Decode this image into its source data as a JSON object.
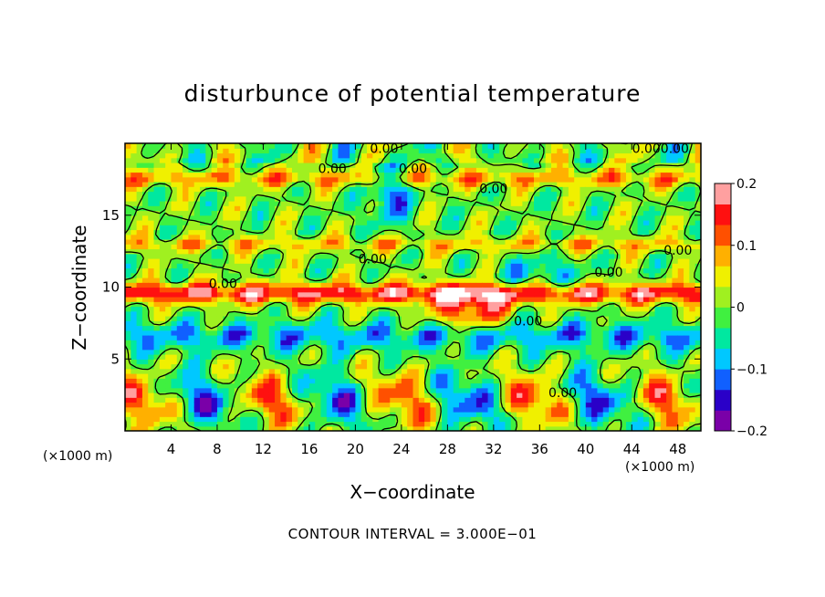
{
  "chart_data": {
    "type": "heatmap",
    "title": "disturbunce of potential temperature",
    "xlabel": "X−coordinate",
    "ylabel": "Z−coordinate",
    "x_unit_label": "(×1000 m)",
    "z_unit_label": "(×1000 m)",
    "xlim": [
      0,
      50
    ],
    "ylim": [
      0,
      20
    ],
    "x_ticks": [
      4,
      8,
      12,
      16,
      20,
      24,
      28,
      32,
      36,
      40,
      44,
      48
    ],
    "y_ticks": [
      5,
      10,
      15
    ],
    "colorbar": {
      "range": [
        -0.2,
        0.2
      ],
      "ticks": [
        {
          "value": 0.2,
          "label": "0.2"
        },
        {
          "value": 0.1,
          "label": "0.1"
        },
        {
          "value": 0,
          "label": "0"
        },
        {
          "value": -0.1,
          "label": "−0.1"
        },
        {
          "value": -0.2,
          "label": "−0.2"
        }
      ],
      "colors": [
        "#7a00a8",
        "#2a00c8",
        "#1060ff",
        "#00c8ff",
        "#00e8a0",
        "#40f040",
        "#a0f020",
        "#f0f000",
        "#ffb000",
        "#ff5000",
        "#ff1010",
        "#ffa0a0"
      ]
    },
    "contour_labels": [
      {
        "x": 22.5,
        "y": 19.6,
        "text": "0.00"
      },
      {
        "x": 46.5,
        "y": 19.6,
        "text": "0.000.00"
      },
      {
        "x": 18.0,
        "y": 18.2,
        "text": "0.00"
      },
      {
        "x": 25.0,
        "y": 18.2,
        "text": "0.00"
      },
      {
        "x": 32.0,
        "y": 16.8,
        "text": "0.00"
      },
      {
        "x": 48.0,
        "y": 12.5,
        "text": "0.00"
      },
      {
        "x": 21.5,
        "y": 11.9,
        "text": "0.00"
      },
      {
        "x": 42.0,
        "y": 11.0,
        "text": "0.00"
      },
      {
        "x": 8.5,
        "y": 10.2,
        "text": "0.00"
      },
      {
        "x": 35.0,
        "y": 7.6,
        "text": "0.00"
      },
      {
        "x": 38.0,
        "y": 2.6,
        "text": "0.00"
      }
    ],
    "contour_interval_label": "CONTOUR INTERVAL = 3.000E−01"
  }
}
